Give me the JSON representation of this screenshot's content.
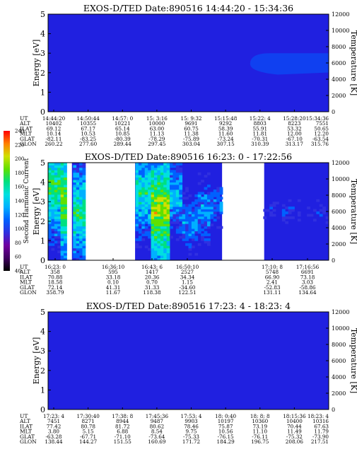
{
  "colors": {
    "background": "#2020e0",
    "blue_band": "#1040f0",
    "white_gap": "#ffffff",
    "axis": "#000000"
  },
  "colorbar": {
    "label": "Second Harmonic Current",
    "ticks": [
      "40",
      "60",
      "80",
      "100",
      "120",
      "140",
      "160",
      "180",
      "200",
      "220",
      "240"
    ],
    "range": [
      40,
      240
    ],
    "stops": [
      "#000000",
      "#400060",
      "#7000a0",
      "#3030e0",
      "#0060ff",
      "#00b0ff",
      "#00e0e0",
      "#00e080",
      "#60e000",
      "#d0e000",
      "#ff8000",
      "#ff0000"
    ]
  },
  "panels": [
    {
      "title": "EXOS-D/TED  Date:890516  14:44:20 - 15:34:36",
      "ylabel_left": "Energy [eV]",
      "ylabel_right": "Temperature [K]",
      "left_ticks": [
        "0",
        "1",
        "2",
        "3",
        "4",
        "5"
      ],
      "left_range": [
        0,
        5
      ],
      "right_ticks": [
        "0",
        "2000",
        "4000",
        "6000",
        "8000",
        "10000",
        "12000"
      ],
      "right_range": [
        0,
        12000
      ],
      "row_labels": [
        "UT",
        "ALT",
        "ILAT",
        "MLT",
        "GLAT",
        "GLON"
      ],
      "columns": [
        [
          "14:44:20",
          "10402",
          "69.12",
          "10.14",
          "-82.11",
          "260.22"
        ],
        [
          "14:50:44",
          "10355",
          "67.17",
          "10.53",
          "-83.25",
          "277.60"
        ],
        [
          "14:57: 0",
          "10221",
          "65.14",
          "10.85",
          "-80.39",
          "289.44"
        ],
        [
          "15: 3:16",
          "10000",
          "63.00",
          "11.13",
          "-78.29",
          "297.45"
        ],
        [
          "15: 9:32",
          "9691",
          "60.75",
          "11.38",
          "-75.89",
          "303.04"
        ],
        [
          "15:15:48",
          "9292",
          "58.39",
          "11.60",
          "-73.24",
          "307.15"
        ],
        [
          "15:22: 4",
          "8803",
          "55.91",
          "11.81",
          "-70.31",
          "310.39"
        ],
        [
          "15:28:20",
          "8223",
          "53.32",
          "12.00",
          "-67.10",
          "313.17"
        ],
        [
          "15:34:36",
          "7551",
          "50.65",
          "12.20",
          "-63.54",
          "315.76"
        ]
      ]
    },
    {
      "title": "EXOS-D/TED  Date:890516  16:23: 0 - 17:22:56",
      "ylabel_left": "Energy [eV]",
      "ylabel_right": "Temperature [K]",
      "left_ticks": [
        "0",
        "1",
        "2",
        "3",
        "4",
        "5"
      ],
      "left_range": [
        0,
        5
      ],
      "right_ticks": [
        "0",
        "2000",
        "4000",
        "6000",
        "8000",
        "10000",
        "12000"
      ],
      "right_range": [
        0,
        12000
      ],
      "row_labels": [
        "UT",
        "ALT",
        "ILAT",
        "MLT",
        "GLAT",
        "GLON"
      ],
      "columns": [
        [
          "16:23: 0",
          "358",
          "70.88",
          "18.58",
          "72.14",
          "358.79"
        ],
        [
          "16:36:10",
          "595",
          "33.18",
          "0.10",
          "41.31",
          "11.67"
        ],
        [
          "16:43: 6",
          "1417",
          "20.36",
          "0.70",
          "31.33",
          "118.38"
        ],
        [
          "16:50:10",
          "2527",
          "34.34",
          "1.15",
          "-34.60",
          "122.51"
        ],
        [
          "17:10: 8",
          "5748",
          "66.90",
          "2.41",
          "-52.83",
          "131.11"
        ],
        [
          "17:16:56",
          "6691",
          "73.18",
          "3.03",
          "-58.86",
          "134.64"
        ]
      ]
    },
    {
      "title": "EXOS-D/TED  Date:890516  17:23: 4 - 18:23: 4",
      "ylabel_left": "Energy [eV]",
      "ylabel_right": "Temperature [K]",
      "left_ticks": [
        "0",
        "1",
        "2",
        "3",
        "4",
        "5"
      ],
      "left_range": [
        0,
        5
      ],
      "right_ticks": [
        "0",
        "2000",
        "4000",
        "6000",
        "8000",
        "10000",
        "12000"
      ],
      "right_range": [
        0,
        12000
      ],
      "row_labels": [
        "UT",
        "ALT",
        "ILAT",
        "MLT",
        "GLAT",
        "GLON"
      ],
      "columns": [
        [
          "17:23: 4",
          "7451",
          "77.42",
          "3.80",
          "-63.28",
          "138.44"
        ],
        [
          "17:30:40",
          "8271",
          "80.78",
          "5.15",
          "-67.71",
          "144.27"
        ],
        [
          "17:38: 8",
          "8944",
          "81.72",
          "6.88",
          "-71.10",
          "151.55"
        ],
        [
          "17:45:36",
          "9487",
          "80.62",
          "8.54",
          "-73.64",
          "160.69"
        ],
        [
          "17:53: 4",
          "9903",
          "78.46",
          "9.75",
          "-75.33",
          "171.72"
        ],
        [
          "18: 0:40",
          "10197",
          "75.87",
          "10.56",
          "-76.15",
          "184.29"
        ],
        [
          "18: 8: 8",
          "10360",
          "73.19",
          "11.10",
          "-76.11",
          "196.75"
        ],
        [
          "18:15:36",
          "10400",
          "70.44",
          "11.49",
          "-75.32",
          "208.06"
        ],
        [
          "18:23: 4",
          "10316",
          "67.63",
          "11.79",
          "-73.90",
          "217.51"
        ]
      ]
    }
  ],
  "chart_data": {
    "type": "heatmap",
    "colorbar_label": "Second Harmonic Current",
    "colorbar_range": [
      40,
      240
    ],
    "panels": [
      {
        "title": "EXOS-D/TED  Date:890516  14:44:20 - 15:34:36",
        "ylabel": "Energy [eV]",
        "ylim": [
          0,
          5
        ],
        "y2label": "Temperature [K]",
        "y2lim": [
          0,
          12000
        ],
        "features": [
          {
            "kind": "blue_band",
            "t_start": 0.72,
            "t_end": 1.0,
            "e_low": 1.9,
            "e_high": 3.0
          }
        ]
      },
      {
        "title": "EXOS-D/TED  Date:890516  16:23: 0 - 17:22:56",
        "ylabel": "Energy [eV]",
        "ylim": [
          0,
          5
        ],
        "y2label": "Temperature [K]",
        "y2lim": [
          0,
          12000
        ],
        "data_intervals": [
          [
            0.0,
            0.065
          ],
          [
            0.085,
            0.13
          ],
          [
            0.31,
            0.62
          ],
          [
            0.77,
            1.0
          ]
        ],
        "mean_level": [
          {
            "t": 0.02,
            "e": 3.8,
            "v": 175
          },
          {
            "t": 0.06,
            "e": 3.0,
            "v": 195
          },
          {
            "t": 0.1,
            "e": 2.5,
            "v": 170
          },
          {
            "t": 0.34,
            "e": 3.5,
            "v": 160
          },
          {
            "t": 0.4,
            "e": 2.6,
            "v": 200
          },
          {
            "t": 0.46,
            "e": 3.2,
            "v": 140
          },
          {
            "t": 0.5,
            "e": 2.0,
            "v": 125
          },
          {
            "t": 0.56,
            "e": 2.5,
            "v": 130
          },
          {
            "t": 0.6,
            "e": 2.8,
            "v": 115
          },
          {
            "t": 0.85,
            "e": 2.5,
            "v": 95
          },
          {
            "t": 0.95,
            "e": 2.5,
            "v": 95
          }
        ]
      },
      {
        "title": "EXOS-D/TED  Date:890516  17:23: 4 - 18:23: 4",
        "ylabel": "Energy [eV]",
        "ylim": [
          0,
          5
        ],
        "y2label": "Temperature [K]",
        "y2lim": [
          0,
          12000
        ],
        "features": []
      }
    ]
  }
}
